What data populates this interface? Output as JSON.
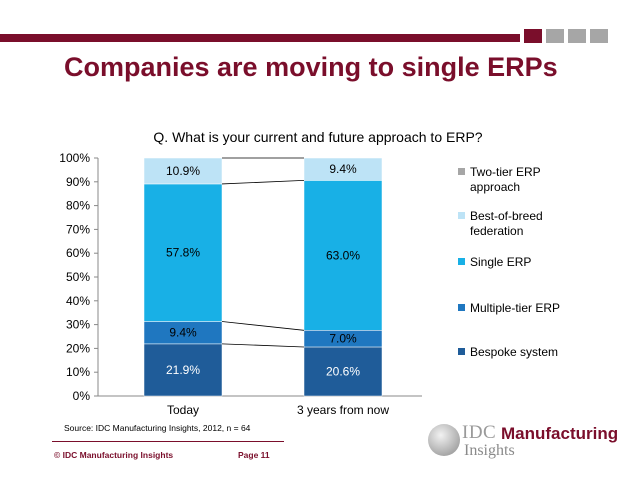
{
  "header": {
    "title": "Companies are moving to single ERPs",
    "accent": "#7a0e2b"
  },
  "chart_data": {
    "type": "bar",
    "stacked": true,
    "percent": true,
    "title": "Q. What is your current and future approach to ERP?",
    "categories": [
      "Today",
      "3 years from now"
    ],
    "series": [
      {
        "name": "Bespoke system",
        "values": [
          21.9,
          20.6
        ],
        "labels": [
          "21.9%",
          "20.6%"
        ],
        "color": "#1f5c99"
      },
      {
        "name": "Multiple-tier ERP",
        "values": [
          9.4,
          7.0
        ],
        "labels": [
          "9.4%",
          "7.0%"
        ],
        "color": "#1f77c0"
      },
      {
        "name": "Single ERP",
        "values": [
          57.8,
          63.0
        ],
        "labels": [
          "57.8%",
          "63.0%"
        ],
        "color": "#18b0e6"
      },
      {
        "name": "Best-of-breed federation",
        "values": [
          10.9,
          9.4
        ],
        "labels": [
          "10.9%",
          "9.4%"
        ],
        "color": "#bde3f6"
      },
      {
        "name": "Two-tier ERP approach",
        "values": [
          0,
          0
        ],
        "labels": [],
        "color": "#a6a6a6"
      }
    ],
    "legend_order": [
      "Two-tier ERP approach",
      "Best-of-breed federation",
      "Single ERP",
      "Multiple-tier ERP",
      "Bespoke system"
    ],
    "legend_lines": {
      "Two-tier ERP approach": [
        "Two-tier ERP",
        "approach"
      ],
      "Best-of-breed federation": [
        "Best-of-breed",
        "federation"
      ],
      "Single ERP": [
        "Single ERP"
      ],
      "Multiple-tier ERP": [
        "Multiple-tier ERP"
      ],
      "Bespoke system": [
        "Bespoke system"
      ]
    },
    "yticks": [
      "0%",
      "10%",
      "20%",
      "30%",
      "40%",
      "50%",
      "60%",
      "70%",
      "80%",
      "90%",
      "100%"
    ],
    "ylim": [
      0,
      100
    ],
    "legend": "right"
  },
  "footer": {
    "source": "Source: IDC Manufacturing Insights, 2012, n = 64",
    "copyright": "© IDC Manufacturing Insights",
    "page": "Page 11"
  },
  "logo": {
    "idc": "IDC",
    "manufacturing": "Manufacturing",
    "insights": "Insights"
  }
}
